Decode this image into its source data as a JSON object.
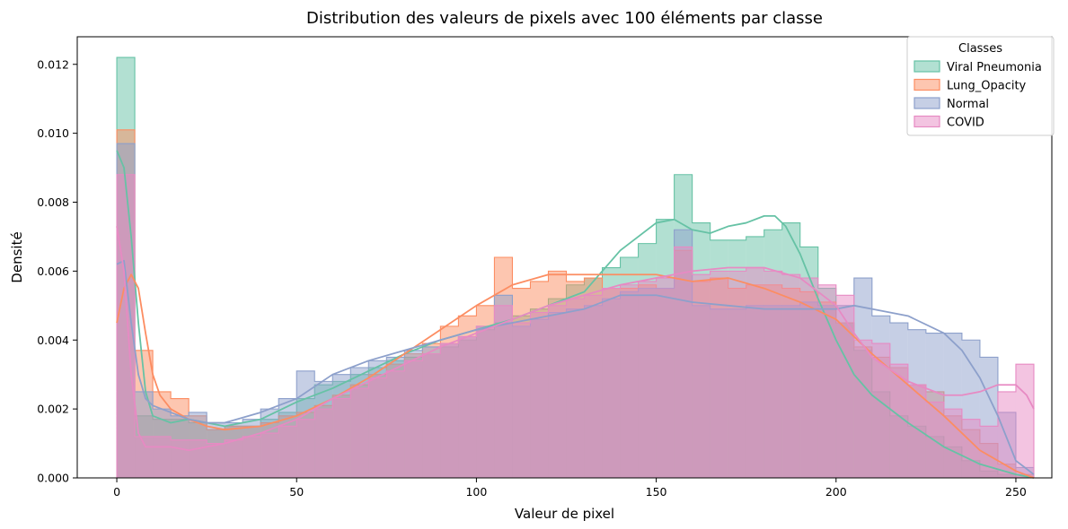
{
  "chart_data": {
    "type": "area",
    "title": "Distribution des valeurs de pixels avec 100 éléments par classe",
    "xlabel": "Valeur de pixel",
    "ylabel": "Densité",
    "xlim": [
      -11,
      260
    ],
    "ylim": [
      0,
      0.0128
    ],
    "xticks": [
      0,
      50,
      100,
      150,
      200,
      250
    ],
    "yticks": [
      0.0,
      0.002,
      0.004,
      0.006,
      0.008,
      0.01,
      0.012
    ],
    "ytick_labels": [
      "0.000",
      "0.002",
      "0.004",
      "0.006",
      "0.008",
      "0.010",
      "0.012"
    ],
    "grid": false,
    "legend": {
      "title": "Classes",
      "placement": "top-right"
    },
    "bin_edges": [
      0,
      5,
      10,
      15,
      20,
      25,
      30,
      35,
      40,
      45,
      50,
      55,
      60,
      65,
      70,
      75,
      80,
      85,
      90,
      95,
      100,
      105,
      110,
      115,
      120,
      125,
      130,
      135,
      140,
      145,
      150,
      155,
      160,
      165,
      170,
      175,
      180,
      185,
      190,
      195,
      200,
      205,
      210,
      215,
      220,
      225,
      230,
      235,
      240,
      245,
      250,
      255
    ],
    "series": [
      {
        "name": "Viral Pneumonia",
        "color": "#66c2a5",
        "hist": [
          0.0122,
          0.0018,
          0.0017,
          0.0017,
          0.0016,
          0.0014,
          0.0015,
          0.0015,
          0.0017,
          0.0019,
          0.0023,
          0.0027,
          0.0028,
          0.003,
          0.0032,
          0.0034,
          0.0035,
          0.0036,
          0.0038,
          0.004,
          0.0043,
          0.0045,
          0.0047,
          0.0049,
          0.0052,
          0.0056,
          0.0058,
          0.0061,
          0.0064,
          0.0068,
          0.0075,
          0.0088,
          0.0074,
          0.0069,
          0.0069,
          0.007,
          0.0072,
          0.0074,
          0.0067,
          0.0055,
          0.0045,
          0.0037,
          0.0025,
          0.0018,
          0.0015,
          0.0012,
          0.0009,
          0.0005,
          0.0002,
          0.0001,
          0.0
        ],
        "kde_x": [
          0,
          2,
          4,
          6,
          8,
          10,
          15,
          20,
          25,
          30,
          35,
          40,
          50,
          60,
          70,
          80,
          90,
          100,
          110,
          120,
          130,
          140,
          145,
          150,
          155,
          160,
          165,
          170,
          175,
          180,
          183,
          186,
          190,
          195,
          200,
          205,
          210,
          220,
          230,
          240,
          250,
          255
        ],
        "kde_y": [
          0.0095,
          0.009,
          0.007,
          0.0045,
          0.0025,
          0.0018,
          0.0016,
          0.0017,
          0.0016,
          0.0015,
          0.0016,
          0.0017,
          0.0022,
          0.0026,
          0.0031,
          0.0036,
          0.004,
          0.0043,
          0.0046,
          0.005,
          0.0054,
          0.0066,
          0.007,
          0.0074,
          0.0075,
          0.0072,
          0.0071,
          0.0073,
          0.0074,
          0.0076,
          0.0076,
          0.0073,
          0.0065,
          0.0052,
          0.004,
          0.003,
          0.0024,
          0.0016,
          0.0009,
          0.0004,
          0.0001,
          0.0
        ]
      },
      {
        "name": "Lung_Opacity",
        "color": "#fc8d62",
        "hist": [
          0.0101,
          0.0037,
          0.0025,
          0.0023,
          0.0018,
          0.0014,
          0.0015,
          0.0015,
          0.0016,
          0.0018,
          0.0019,
          0.0021,
          0.0024,
          0.0027,
          0.003,
          0.0033,
          0.0036,
          0.0039,
          0.0044,
          0.0047,
          0.005,
          0.0064,
          0.0055,
          0.0057,
          0.006,
          0.0057,
          0.0058,
          0.0055,
          0.0055,
          0.0056,
          0.0055,
          0.0066,
          0.0057,
          0.0058,
          0.0055,
          0.0056,
          0.0056,
          0.0055,
          0.0054,
          0.0051,
          0.0045,
          0.0038,
          0.0035,
          0.0032,
          0.0027,
          0.0025,
          0.0018,
          0.0014,
          0.001,
          0.0004,
          0.0001
        ],
        "kde_x": [
          0,
          2,
          4,
          6,
          8,
          10,
          12,
          15,
          20,
          25,
          30,
          40,
          50,
          60,
          70,
          80,
          90,
          100,
          110,
          120,
          130,
          140,
          150,
          160,
          170,
          180,
          190,
          200,
          210,
          220,
          230,
          240,
          250,
          255
        ],
        "kde_y": [
          0.0045,
          0.0055,
          0.0059,
          0.0055,
          0.0042,
          0.003,
          0.0024,
          0.002,
          0.0017,
          0.0015,
          0.0014,
          0.0015,
          0.0018,
          0.0023,
          0.0029,
          0.0036,
          0.0043,
          0.005,
          0.0056,
          0.0059,
          0.0059,
          0.0059,
          0.0059,
          0.0057,
          0.0058,
          0.0055,
          0.0051,
          0.0046,
          0.0036,
          0.0027,
          0.0018,
          0.0008,
          0.0002,
          0.0
        ]
      },
      {
        "name": "Normal",
        "color": "#8da0cb",
        "hist": [
          0.0097,
          0.0025,
          0.002,
          0.0018,
          0.0019,
          0.0016,
          0.0016,
          0.0017,
          0.002,
          0.0023,
          0.0031,
          0.0028,
          0.003,
          0.0032,
          0.0034,
          0.0035,
          0.0037,
          0.0038,
          0.0039,
          0.0041,
          0.0044,
          0.0053,
          0.0044,
          0.0046,
          0.0048,
          0.0049,
          0.005,
          0.0052,
          0.0054,
          0.0055,
          0.0055,
          0.0072,
          0.005,
          0.0049,
          0.0049,
          0.005,
          0.005,
          0.005,
          0.0051,
          0.005,
          0.005,
          0.0058,
          0.0047,
          0.0045,
          0.0043,
          0.0042,
          0.0042,
          0.004,
          0.0035,
          0.0019,
          0.0003
        ],
        "kde_x": [
          0,
          2,
          4,
          6,
          8,
          10,
          15,
          20,
          25,
          30,
          40,
          50,
          60,
          70,
          80,
          90,
          100,
          110,
          120,
          130,
          140,
          150,
          160,
          170,
          180,
          190,
          200,
          205,
          210,
          220,
          230,
          235,
          240,
          245,
          250,
          255
        ],
        "kde_y": [
          0.0062,
          0.0063,
          0.0045,
          0.003,
          0.0023,
          0.0021,
          0.0019,
          0.0017,
          0.0016,
          0.0016,
          0.0019,
          0.0023,
          0.003,
          0.0034,
          0.0037,
          0.004,
          0.0043,
          0.0045,
          0.0047,
          0.0049,
          0.0053,
          0.0053,
          0.0051,
          0.005,
          0.0049,
          0.0049,
          0.0049,
          0.005,
          0.0049,
          0.0047,
          0.0042,
          0.0037,
          0.0029,
          0.0018,
          0.0005,
          0.0001
        ]
      },
      {
        "name": "COVID",
        "color": "#e78ac3",
        "hist": [
          0.0088,
          0.0012,
          0.0012,
          0.0011,
          0.0011,
          0.001,
          0.0011,
          0.0012,
          0.0013,
          0.0015,
          0.0017,
          0.002,
          0.0023,
          0.0026,
          0.0029,
          0.0031,
          0.0034,
          0.0036,
          0.0039,
          0.0041,
          0.0044,
          0.005,
          0.0045,
          0.0048,
          0.005,
          0.0052,
          0.0053,
          0.0055,
          0.0056,
          0.0057,
          0.0058,
          0.0067,
          0.0059,
          0.006,
          0.006,
          0.0061,
          0.006,
          0.0059,
          0.0058,
          0.0056,
          0.0053,
          0.004,
          0.0039,
          0.0033,
          0.0027,
          0.0022,
          0.002,
          0.0017,
          0.0015,
          0.0025,
          0.0033
        ],
        "kde_x": [
          0,
          2,
          4,
          6,
          8,
          10,
          15,
          20,
          25,
          30,
          40,
          50,
          60,
          70,
          80,
          90,
          100,
          110,
          120,
          130,
          140,
          150,
          160,
          170,
          180,
          190,
          200,
          205,
          210,
          220,
          230,
          235,
          240,
          245,
          250,
          253,
          255
        ],
        "kde_y": [
          0.0073,
          0.006,
          0.003,
          0.0013,
          0.0009,
          0.0009,
          0.0009,
          0.0008,
          0.0009,
          0.001,
          0.0013,
          0.0017,
          0.0023,
          0.0028,
          0.0033,
          0.0038,
          0.0042,
          0.0046,
          0.005,
          0.0053,
          0.0056,
          0.0058,
          0.006,
          0.0061,
          0.0061,
          0.0058,
          0.005,
          0.0042,
          0.0035,
          0.0028,
          0.0024,
          0.0024,
          0.0025,
          0.0027,
          0.0027,
          0.0024,
          0.002
        ]
      }
    ]
  }
}
